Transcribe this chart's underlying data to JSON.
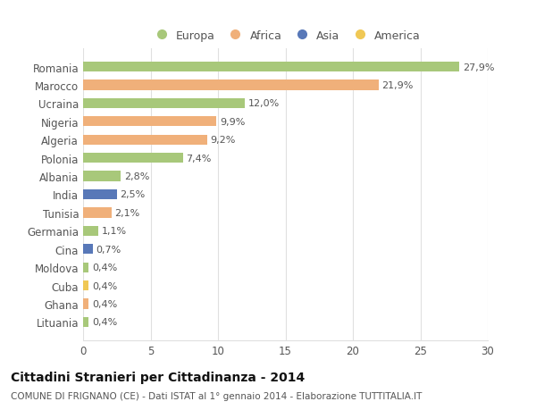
{
  "countries": [
    "Romania",
    "Marocco",
    "Ucraina",
    "Nigeria",
    "Algeria",
    "Polonia",
    "Albania",
    "India",
    "Tunisia",
    "Germania",
    "Cina",
    "Moldova",
    "Cuba",
    "Ghana",
    "Lituania"
  ],
  "values": [
    27.9,
    21.9,
    12.0,
    9.9,
    9.2,
    7.4,
    2.8,
    2.5,
    2.1,
    1.1,
    0.7,
    0.4,
    0.4,
    0.4,
    0.4
  ],
  "labels": [
    "27,9%",
    "21,9%",
    "12,0%",
    "9,9%",
    "9,2%",
    "7,4%",
    "2,8%",
    "2,5%",
    "2,1%",
    "1,1%",
    "0,7%",
    "0,4%",
    "0,4%",
    "0,4%",
    "0,4%"
  ],
  "categories": [
    "Europa",
    "Africa",
    "Europa",
    "Africa",
    "Africa",
    "Europa",
    "Europa",
    "Asia",
    "Africa",
    "Europa",
    "Asia",
    "Europa",
    "America",
    "Africa",
    "Europa"
  ],
  "colors": {
    "Europa": "#a8c87a",
    "Africa": "#f0b07a",
    "Asia": "#5878b8",
    "America": "#f0c855"
  },
  "legend_order": [
    "Europa",
    "Africa",
    "Asia",
    "America"
  ],
  "title": "Cittadini Stranieri per Cittadinanza - 2014",
  "subtitle": "COMUNE DI FRIGNANO (CE) - Dati ISTAT al 1° gennaio 2014 - Elaborazione TUTTITALIA.IT",
  "xlim": [
    0,
    30
  ],
  "xticks": [
    0,
    5,
    10,
    15,
    20,
    25,
    30
  ],
  "background_color": "#ffffff",
  "bar_height": 0.55,
  "grid_color": "#e0e0e0",
  "text_color": "#555555",
  "title_color": "#111111",
  "label_fontsize": 8,
  "ytick_fontsize": 8.5,
  "xtick_fontsize": 8.5
}
